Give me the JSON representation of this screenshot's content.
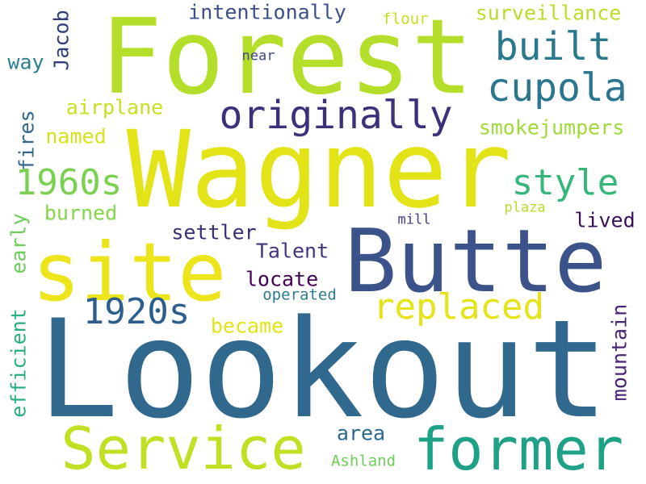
{
  "words": [
    {
      "text": "Lookout",
      "color": "#31688e"
    },
    {
      "text": "Forest",
      "color": "#b5de2b"
    },
    {
      "text": "Wagner",
      "color": "#e2e418"
    },
    {
      "text": "Butte",
      "color": "#3b528b"
    },
    {
      "text": "site",
      "color": "#ece51b"
    },
    {
      "text": "Service",
      "color": "#c2df23"
    },
    {
      "text": "former",
      "color": "#1fa187"
    },
    {
      "text": "originally",
      "color": "#3e2f7a"
    },
    {
      "text": "cupola",
      "color": "#2b758e"
    },
    {
      "text": "built",
      "color": "#2a788e"
    },
    {
      "text": "replaced",
      "color": "#e5e419"
    },
    {
      "text": "1920s",
      "color": "#2c5e8d"
    },
    {
      "text": "1960s",
      "color": "#7ad151"
    },
    {
      "text": "style",
      "color": "#35b779"
    },
    {
      "text": "intentionally",
      "color": "#3b4f8a"
    },
    {
      "text": "surveillance",
      "color": "#b8de29"
    },
    {
      "text": "airplane",
      "color": "#c8e020"
    },
    {
      "text": "smokejumpers",
      "color": "#a0da39"
    },
    {
      "text": "named",
      "color": "#d8e219"
    },
    {
      "text": "burned",
      "color": "#86d549"
    },
    {
      "text": "settler",
      "color": "#3b2d77"
    },
    {
      "text": "Talent",
      "color": "#46327e"
    },
    {
      "text": "locate",
      "color": "#440154"
    },
    {
      "text": "lived",
      "color": "#3a0f5a"
    },
    {
      "text": "became",
      "color": "#e2e418"
    },
    {
      "text": "operated",
      "color": "#2c7d8e"
    },
    {
      "text": "area",
      "color": "#29678e"
    },
    {
      "text": "Ashland",
      "color": "#6ece58"
    },
    {
      "text": "mountain",
      "color": "#482475"
    },
    {
      "text": "efficient",
      "color": "#2ab07f"
    },
    {
      "text": "early",
      "color": "#6ccd5a"
    },
    {
      "text": "fires",
      "color": "#31668e"
    },
    {
      "text": "Jacob",
      "color": "#2f3d7a"
    },
    {
      "text": "way",
      "color": "#2a7f8e"
    },
    {
      "text": "near",
      "color": "#3e4a89"
    },
    {
      "text": "flour",
      "color": "#c5e021"
    },
    {
      "text": "mill",
      "color": "#433d84"
    },
    {
      "text": "plaza",
      "color": "#b5de2b"
    }
  ]
}
